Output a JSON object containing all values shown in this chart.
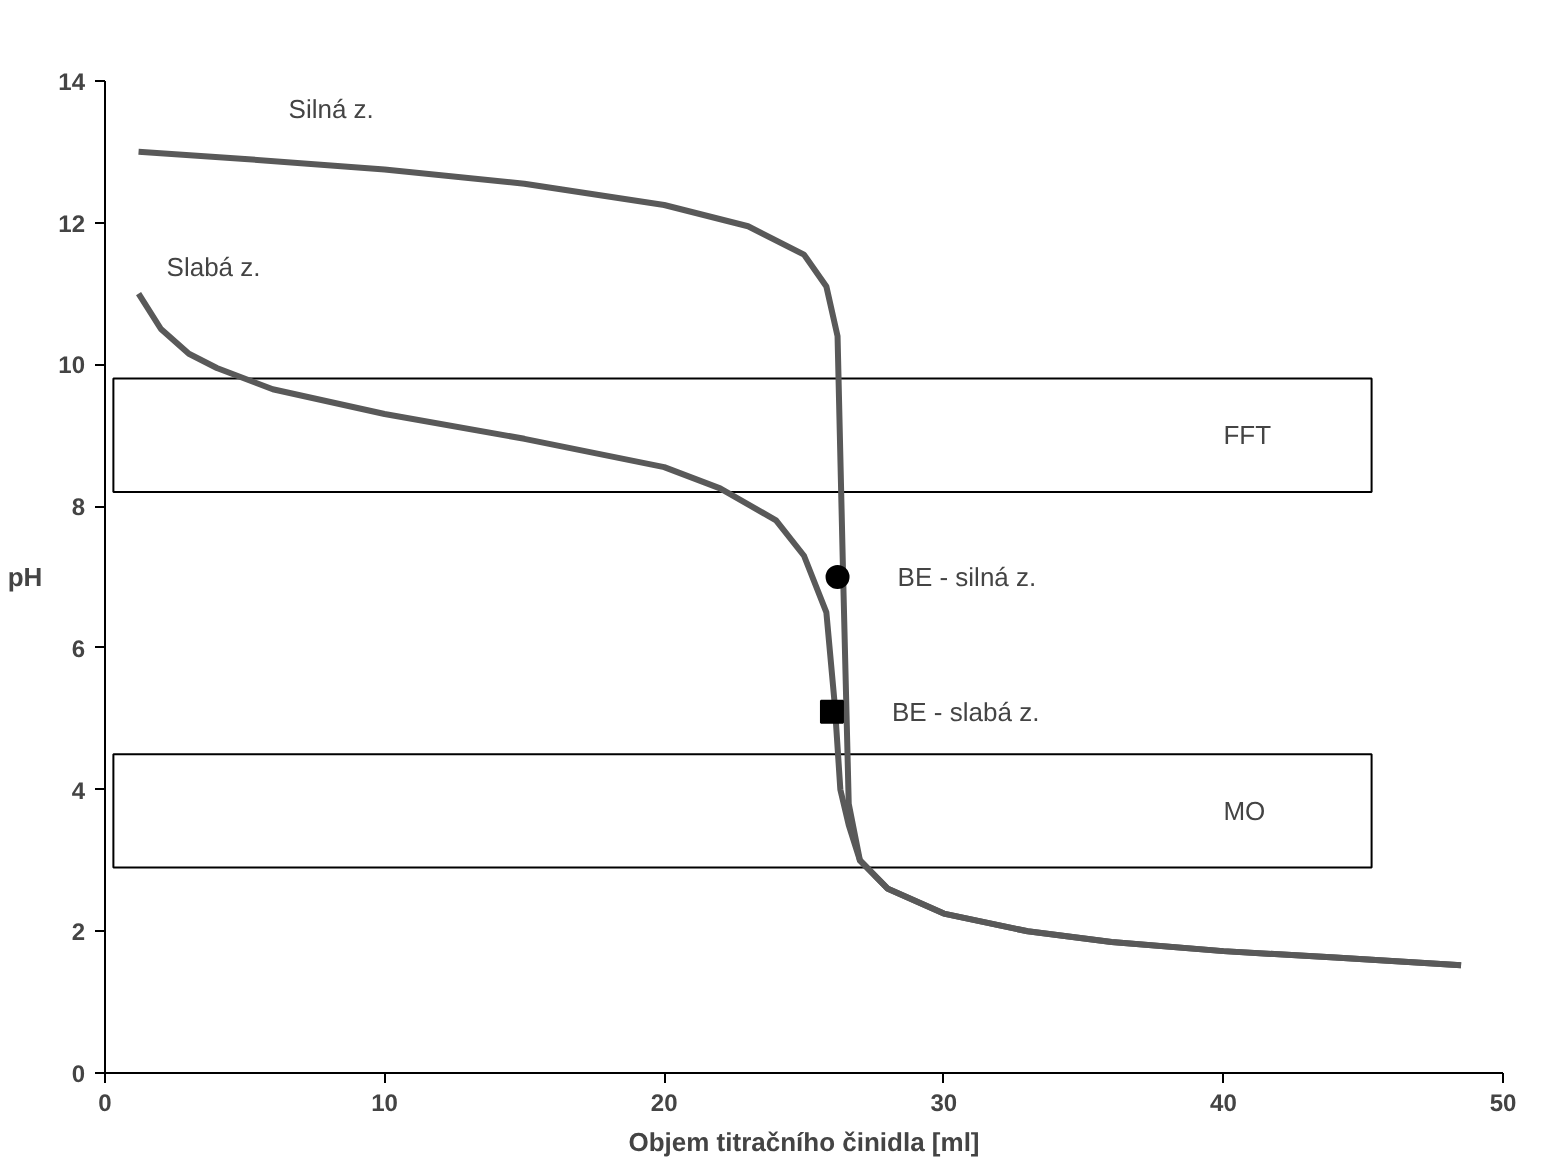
{
  "chart_data": {
    "type": "line",
    "xlabel": "Objem titračního činidla [ml]",
    "ylabel": "pH",
    "xlim": [
      0,
      50
    ],
    "xticks": [
      0,
      10,
      20,
      30,
      40,
      50
    ],
    "ylim": [
      0,
      14
    ],
    "yticks": [
      0,
      2,
      4,
      6,
      8,
      10,
      12,
      14
    ],
    "grid": false,
    "legend": false,
    "line_style": "solid",
    "series": [
      {
        "name": "Silná z.",
        "color": "#595959",
        "marker": "none",
        "x": [
          1.2,
          5,
          10,
          15,
          20,
          23,
          25,
          25.8,
          26.2,
          26.4,
          26.6,
          27,
          28,
          30,
          33,
          36,
          40,
          44,
          48.5
        ],
        "values": [
          13.0,
          12.9,
          12.75,
          12.55,
          12.25,
          11.95,
          11.55,
          11.1,
          10.4,
          7.0,
          3.8,
          3.0,
          2.6,
          2.25,
          2.0,
          1.85,
          1.72,
          1.63,
          1.52
        ]
      },
      {
        "name": "Slabá z.",
        "color": "#595959",
        "marker": "none",
        "x": [
          1.2,
          2,
          3,
          4,
          6,
          10,
          15,
          20,
          22,
          24,
          25,
          25.8,
          26.1,
          26.3,
          26.6,
          27,
          28,
          30,
          33,
          36,
          40,
          44,
          48.5
        ],
        "values": [
          11.0,
          10.5,
          10.15,
          9.95,
          9.65,
          9.3,
          8.95,
          8.55,
          8.25,
          7.8,
          7.3,
          6.5,
          5.2,
          4.0,
          3.5,
          3.0,
          2.6,
          2.25,
          2.0,
          1.85,
          1.72,
          1.63,
          1.52
        ]
      },
      {
        "type": "scatter",
        "color": "#000000",
        "marker": "circle",
        "x": [
          26.2
        ],
        "values": [
          7.0
        ]
      },
      {
        "type": "scatter",
        "color": "#000000",
        "marker": "square",
        "x": [
          26.0
        ],
        "values": [
          5.1
        ]
      }
    ],
    "bands": [
      {
        "axis": "y",
        "from": 8.2,
        "to": 9.8,
        "label": "FFT",
        "color": "#ffffff"
      },
      {
        "axis": "y",
        "from": 2.9,
        "to": 4.5,
        "label": "MO",
        "color": "#ffffff"
      }
    ],
    "annotations": [
      {
        "text": "BE - silná z.",
        "x": 26.2,
        "y": 7.0
      },
      {
        "text": "BE - slabá z.",
        "x": 26.0,
        "y": 5.1
      }
    ]
  }
}
